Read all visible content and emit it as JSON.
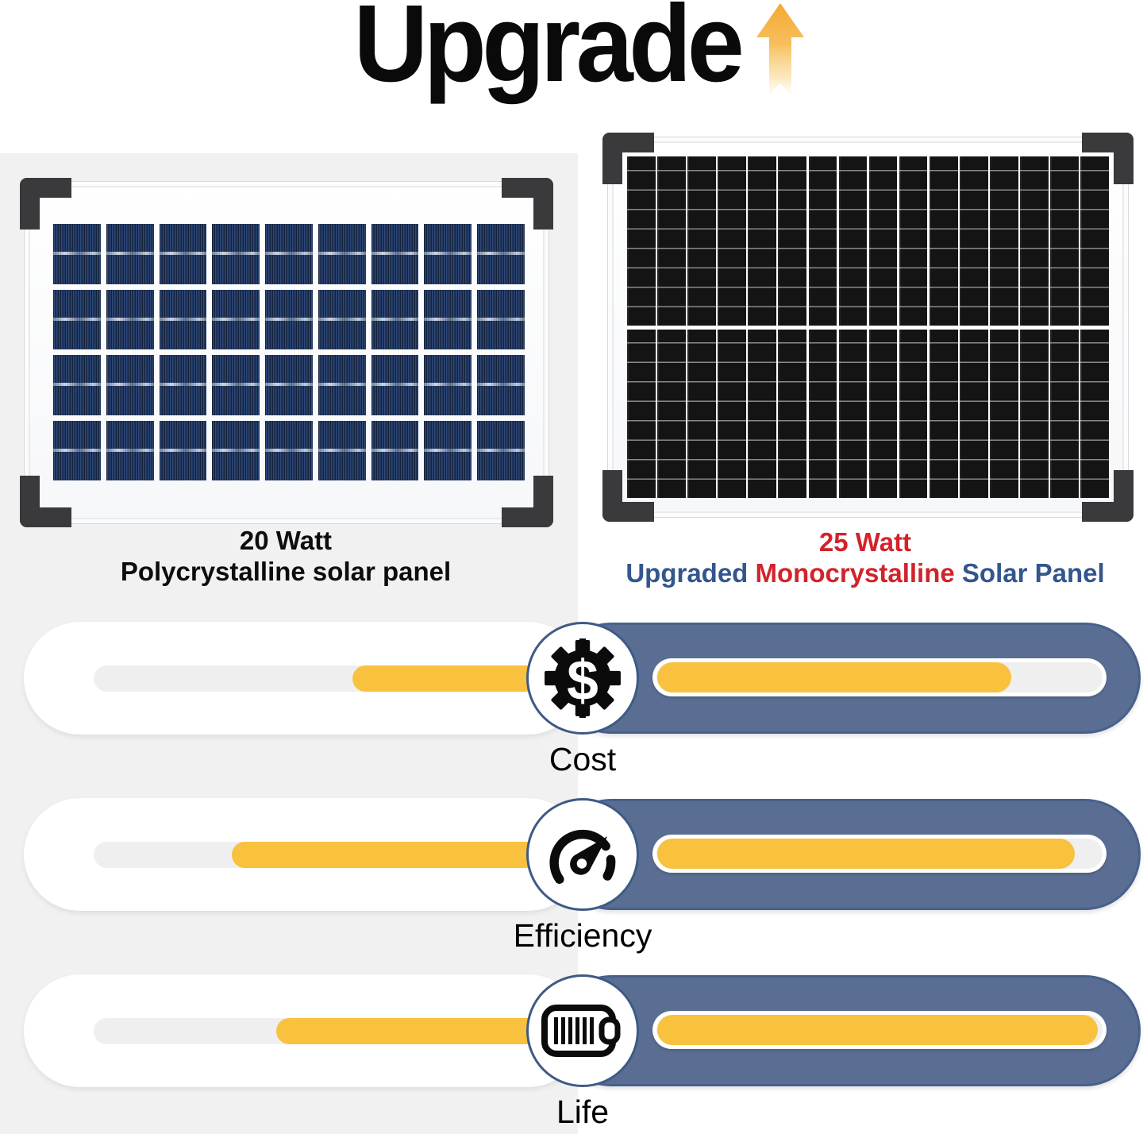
{
  "title": {
    "text": "Upgrade",
    "arrow_icon": "up-arrow-icon"
  },
  "left_panel": {
    "caption_line1": "20 Watt",
    "caption_line2": "Polycrystalline solar panel",
    "grid": {
      "cols": 9,
      "rows": 4
    }
  },
  "right_panel": {
    "caption_line1": "25 Watt",
    "caption_line2_segments": [
      {
        "text": "Upgraded ",
        "color": "blue"
      },
      {
        "text": "Monocrystalline",
        "color": "red"
      },
      {
        "text": " Solar Panel",
        "color": "blue"
      }
    ],
    "grid": {
      "cols": 16,
      "halves": 2
    }
  },
  "rows": [
    {
      "label": "Cost",
      "icon": "dollar-gear-icon",
      "left_fill_pct": 42,
      "right_fill_pct": 78
    },
    {
      "label": "Efficiency",
      "icon": "speedometer-icon",
      "left_fill_pct": 69,
      "right_fill_pct": 92
    },
    {
      "label": "Life",
      "icon": "battery-icon",
      "left_fill_pct": 59,
      "right_fill_pct": 97
    }
  ],
  "colors": {
    "yellow": "#F8C13E",
    "pill_blue": "#5A6E93",
    "red": "#D2232B",
    "blue": "#33568D",
    "bg_gray": "#F1F1F1",
    "icon_black": "#0B0B0B",
    "arrow_orange": "#F4A930"
  }
}
